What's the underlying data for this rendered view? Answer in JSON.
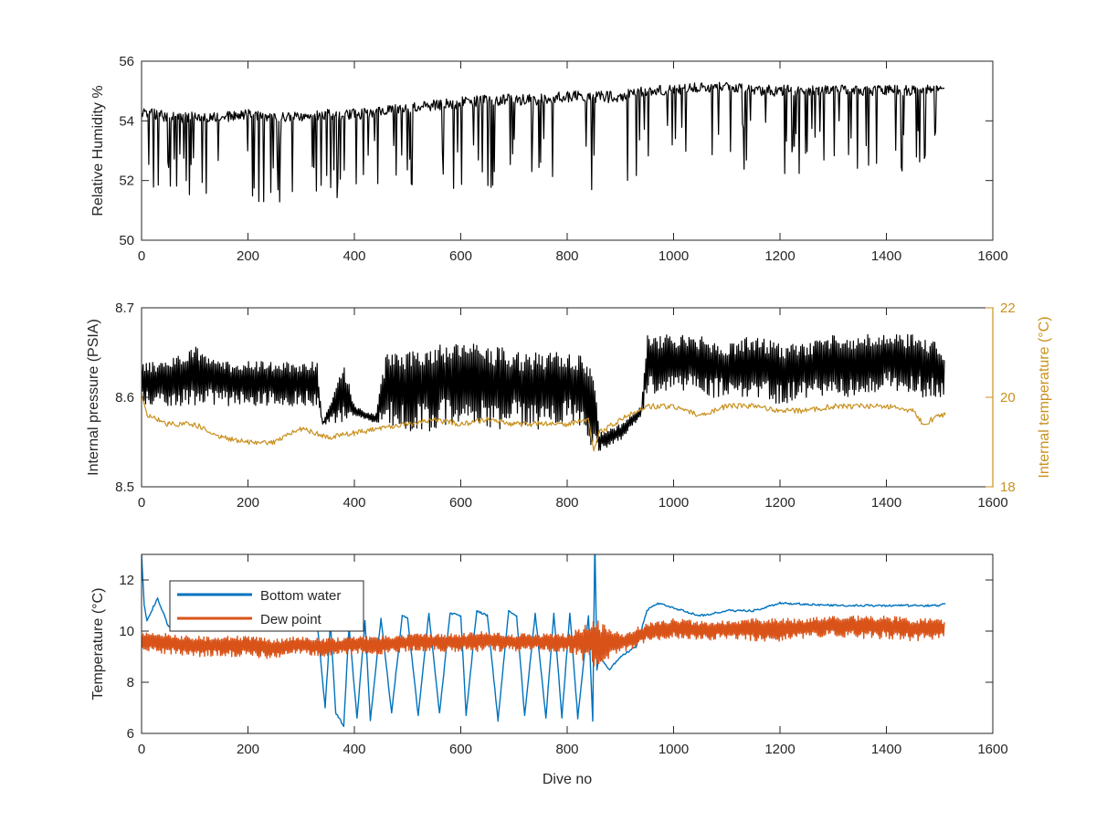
{
  "chart_data": [
    {
      "type": "line",
      "title": "",
      "xlabel": "",
      "ylabel": "Relative Humidity %",
      "xlim": [
        0,
        1600
      ],
      "ylim": [
        50,
        56
      ],
      "xticks": [
        "0",
        "200",
        "400",
        "600",
        "800",
        "1000",
        "1200",
        "1400",
        "1600"
      ],
      "yticks": [
        "50",
        "52",
        "54",
        "56"
      ],
      "series": [
        {
          "color": "#000000",
          "x": [
            0,
            50,
            100,
            150,
            200,
            250,
            300,
            350,
            400,
            450,
            500,
            550,
            600,
            650,
            700,
            750,
            800,
            850,
            900,
            950,
            1000,
            1050,
            1100,
            1150,
            1200,
            1250,
            1300,
            1350,
            1400,
            1450,
            1500,
            1510
          ],
          "upper": [
            54.5,
            54.3,
            54.3,
            54.3,
            54.4,
            54.3,
            54.3,
            54.4,
            54.4,
            54.5,
            54.6,
            54.7,
            54.8,
            54.9,
            54.9,
            54.9,
            55.0,
            55.0,
            55.0,
            55.2,
            55.2,
            55.3,
            55.3,
            55.2,
            55.2,
            55.2,
            55.2,
            55.2,
            55.2,
            55.2,
            55.2,
            55.2
          ],
          "lower": [
            51.4,
            51.3,
            51.4,
            51.4,
            51.3,
            51.2,
            51.5,
            51.4,
            51.1,
            51.8,
            51.4,
            51.8,
            51.6,
            51.6,
            51.7,
            51.8,
            51.9,
            51.6,
            51.8,
            52.3,
            52.4,
            52.5,
            52.5,
            52.3,
            52.0,
            52.3,
            52.6,
            52.3,
            52.2,
            52.0,
            53.4,
            53.5
          ]
        }
      ]
    },
    {
      "type": "line",
      "title": "",
      "xlabel": "",
      "ylabel": "Internal pressure (PSIA)",
      "y2label": "Internal temperature (°C)",
      "xlim": [
        0,
        1600
      ],
      "ylim": [
        8.5,
        8.7
      ],
      "y2lim": [
        18,
        22
      ],
      "xticks": [
        "0",
        "200",
        "400",
        "600",
        "800",
        "1000",
        "1200",
        "1400",
        "1600"
      ],
      "yticks": [
        "8.5",
        "8.6",
        "8.7"
      ],
      "y2ticks": [
        "18",
        "20",
        "22"
      ],
      "series": [
        {
          "color": "#000000",
          "axis": "left",
          "x": [
            0,
            50,
            100,
            150,
            200,
            250,
            300,
            330,
            340,
            380,
            400,
            440,
            460,
            500,
            540,
            580,
            620,
            660,
            700,
            740,
            780,
            820,
            850,
            860,
            900,
            940,
            950,
            1000,
            1050,
            1100,
            1150,
            1200,
            1250,
            1300,
            1350,
            1400,
            1450,
            1500,
            1510
          ],
          "upper": [
            8.64,
            8.64,
            8.66,
            8.64,
            8.64,
            8.64,
            8.64,
            8.64,
            8.57,
            8.64,
            8.59,
            8.58,
            8.65,
            8.65,
            8.66,
            8.66,
            8.66,
            8.66,
            8.65,
            8.65,
            8.65,
            8.65,
            8.63,
            8.56,
            8.57,
            8.59,
            8.67,
            8.67,
            8.67,
            8.66,
            8.67,
            8.66,
            8.66,
            8.67,
            8.67,
            8.67,
            8.67,
            8.66,
            8.65
          ],
          "lower": [
            8.59,
            8.59,
            8.59,
            8.59,
            8.59,
            8.59,
            8.59,
            8.59,
            8.57,
            8.57,
            8.58,
            8.57,
            8.57,
            8.56,
            8.56,
            8.57,
            8.57,
            8.56,
            8.57,
            8.56,
            8.57,
            8.57,
            8.54,
            8.54,
            8.55,
            8.58,
            8.6,
            8.61,
            8.6,
            8.6,
            8.6,
            8.59,
            8.6,
            8.6,
            8.6,
            8.61,
            8.6,
            8.6,
            8.6
          ]
        },
        {
          "color": "#C9911F",
          "axis": "right",
          "x": [
            0,
            10,
            50,
            100,
            150,
            200,
            250,
            300,
            350,
            400,
            450,
            500,
            550,
            600,
            650,
            700,
            750,
            800,
            840,
            850,
            860,
            900,
            950,
            1000,
            1050,
            1100,
            1150,
            1200,
            1250,
            1300,
            1350,
            1400,
            1450,
            1470,
            1500,
            1510
          ],
          "values": [
            20.1,
            19.6,
            19.4,
            19.4,
            19.1,
            19.0,
            19.0,
            19.3,
            19.1,
            19.2,
            19.3,
            19.4,
            19.5,
            19.4,
            19.5,
            19.4,
            19.4,
            19.4,
            19.5,
            18.8,
            19.2,
            19.5,
            19.8,
            19.8,
            19.6,
            19.8,
            19.8,
            19.7,
            19.7,
            19.8,
            19.8,
            19.8,
            19.7,
            19.4,
            19.6,
            19.6
          ]
        }
      ]
    },
    {
      "type": "line",
      "title": "",
      "xlabel": "Dive no",
      "ylabel": "Temperature (°C)",
      "xlim": [
        0,
        1600
      ],
      "ylim": [
        6,
        13
      ],
      "xticks": [
        "0",
        "200",
        "400",
        "600",
        "800",
        "1000",
        "1200",
        "1400",
        "1600"
      ],
      "yticks": [
        "6",
        "8",
        "10",
        "12"
      ],
      "legend": "top-left",
      "series": [
        {
          "name": "Bottom water",
          "color": "#0072BD",
          "x": [
            0,
            5,
            10,
            30,
            50,
            100,
            150,
            200,
            250,
            300,
            330,
            345,
            355,
            365,
            380,
            390,
            405,
            420,
            430,
            450,
            470,
            490,
            500,
            520,
            540,
            560,
            580,
            600,
            610,
            630,
            650,
            670,
            690,
            705,
            720,
            740,
            760,
            775,
            790,
            805,
            820,
            840,
            848,
            852,
            856,
            860,
            880,
            900,
            930,
            950,
            970,
            1000,
            1050,
            1100,
            1150,
            1200,
            1300,
            1400,
            1500,
            1510
          ],
          "values": [
            13,
            11.0,
            10.4,
            11.3,
            10.2,
            10.2,
            10.3,
            10.3,
            10.4,
            10.2,
            10.4,
            7.0,
            10.3,
            6.8,
            6.3,
            10.2,
            6.6,
            10.4,
            6.5,
            10.5,
            6.8,
            10.6,
            10.5,
            6.7,
            10.7,
            6.8,
            10.7,
            10.6,
            6.7,
            10.8,
            10.6,
            6.5,
            10.8,
            10.6,
            6.7,
            10.7,
            6.6,
            10.7,
            6.6,
            10.7,
            6.6,
            10.6,
            6.5,
            13.5,
            8.5,
            9.0,
            8.5,
            9.0,
            9.4,
            10.8,
            11.1,
            10.9,
            10.6,
            10.8,
            10.8,
            11.1,
            11.0,
            11.0,
            11.0,
            11.1
          ]
        },
        {
          "name": "Dew point",
          "color": "#D95319",
          "x": [
            0,
            50,
            100,
            150,
            200,
            250,
            300,
            350,
            400,
            450,
            500,
            550,
            600,
            650,
            700,
            750,
            800,
            850,
            900,
            950,
            1000,
            1050,
            1100,
            1150,
            1200,
            1250,
            1300,
            1350,
            1400,
            1450,
            1500,
            1510
          ],
          "upper": [
            10.0,
            9.9,
            9.8,
            9.8,
            9.8,
            9.7,
            9.8,
            9.7,
            9.8,
            9.8,
            9.9,
            9.9,
            9.9,
            10.0,
            9.9,
            9.9,
            9.9,
            10.5,
            9.9,
            10.3,
            10.5,
            10.4,
            10.4,
            10.5,
            10.5,
            10.5,
            10.6,
            10.6,
            10.6,
            10.5,
            10.5,
            10.4
          ],
          "lower": [
            9.2,
            9.1,
            9.0,
            9.0,
            9.0,
            8.9,
            9.1,
            9.0,
            9.1,
            9.1,
            9.2,
            9.2,
            9.2,
            9.2,
            9.2,
            9.2,
            9.2,
            8.6,
            9.1,
            9.6,
            9.7,
            9.6,
            9.7,
            9.6,
            9.6,
            9.7,
            9.8,
            9.7,
            9.7,
            9.6,
            9.7,
            9.8
          ]
        }
      ]
    }
  ]
}
